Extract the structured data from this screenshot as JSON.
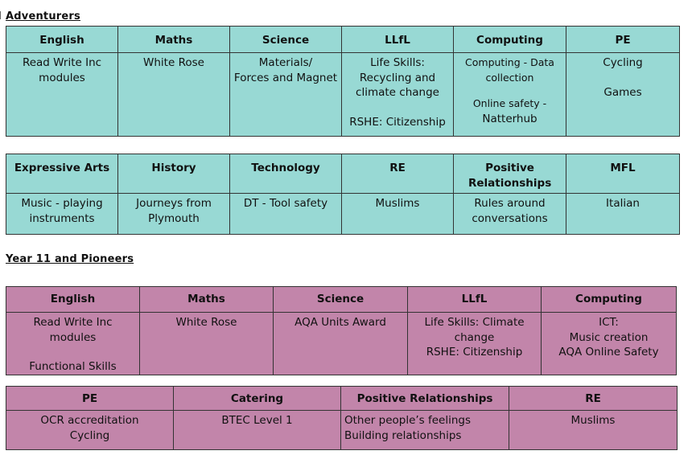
{
  "section1": {
    "title": "Adventurers",
    "table1": {
      "headers": [
        "English",
        "Maths",
        "Science",
        "LLfL",
        "Computing",
        "PE"
      ],
      "cells": [
        [
          "Read Write Inc",
          "modules"
        ],
        [
          "White Rose"
        ],
        [
          "Materials/",
          "Forces and Magnet"
        ],
        [
          "Life Skills:",
          "Recycling and",
          "climate change",
          "",
          "RSHE: Citizenship"
        ],
        [
          "Computing - Data",
          "collection",
          "",
          "Online safety -",
          "Natterhub"
        ],
        [
          "Cycling",
          "",
          "Games"
        ]
      ]
    },
    "table2": {
      "headers": [
        "Expressive Arts",
        "History",
        "Technology",
        "RE",
        "Positive Relationships",
        "MFL"
      ],
      "cells": [
        [
          "Music - playing",
          "instruments"
        ],
        [
          "Journeys from",
          "Plymouth"
        ],
        [
          "DT - Tool safety"
        ],
        [
          "Muslims"
        ],
        [
          "Rules around",
          "conversations"
        ],
        [
          "Italian"
        ]
      ]
    }
  },
  "section2": {
    "title": "Year 11 and Pioneers",
    "table1": {
      "headers": [
        "English",
        "Maths",
        "Science",
        "LLfL",
        "Computing"
      ],
      "cells": [
        [
          "Read Write Inc modules",
          "",
          "Functional Skills"
        ],
        [
          "White Rose"
        ],
        [
          "AQA Units Award"
        ],
        [
          "Life Skills: Climate",
          "change",
          "RSHE: Citizenship"
        ],
        [
          "ICT:",
          "Music creation",
          "AQA Online Safety"
        ]
      ]
    },
    "table2": {
      "headers": [
        "PE",
        "Catering",
        "Positive Relationships",
        "RE"
      ],
      "cells": [
        [
          "OCR accreditation",
          "Cycling"
        ],
        [
          "BTEC Level 1"
        ],
        [
          "Other people’s feelings",
          "Building relationships"
        ],
        [
          "Muslims"
        ]
      ]
    }
  }
}
